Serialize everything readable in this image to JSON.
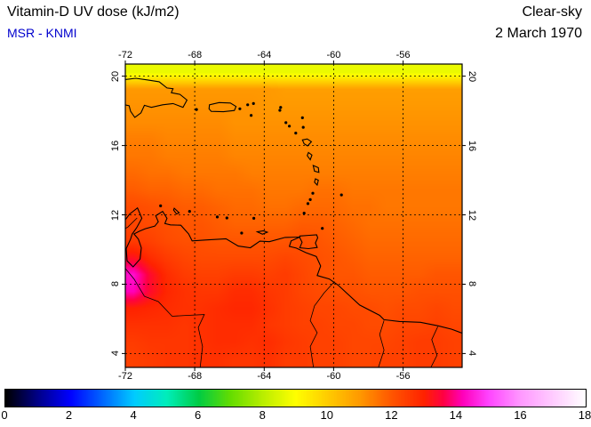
{
  "header": {
    "title": "Vitamin-D UV dose (kJ/m2)",
    "source": "MSR - KNMI",
    "source_color": "#0000cd",
    "condition": "Clear-sky",
    "date": "2 March 1970"
  },
  "chart_data": {
    "type": "heatmap",
    "title": "Vitamin-D UV dose (kJ/m2)",
    "subtitle": "MSR - KNMI",
    "scenario": "Clear-sky",
    "date": "2 March 1970",
    "units": "kJ/m2",
    "region": "Caribbean / northern South America",
    "lon_range": [
      -72,
      -52.6
    ],
    "lat_range": [
      3.2,
      20.7
    ],
    "xlabel_ticks": [
      -72,
      -68,
      -64,
      -60,
      -56
    ],
    "ylabel_ticks": [
      20,
      16,
      12,
      8,
      4
    ],
    "grid_on": true,
    "grid_style": "dashed",
    "values_order": "rows north to south, 20 columns west to east",
    "values": [
      [
        8.7,
        8.7,
        8.7,
        8.7,
        8.7,
        8.7,
        8.7,
        8.7,
        8.7,
        8.7,
        8.7,
        8.7,
        8.7,
        8.7,
        8.7,
        8.7,
        8.7,
        8.7,
        8.7,
        8.7
      ],
      [
        11.0,
        11.0,
        11.0,
        11.0,
        11.0,
        11.0,
        11.0,
        11.0,
        11.0,
        10.9,
        10.9,
        10.9,
        10.9,
        10.9,
        10.9,
        10.9,
        10.9,
        10.9,
        10.9,
        10.9
      ],
      [
        11.1,
        11.1,
        11.1,
        11.1,
        11.1,
        11.1,
        11.1,
        11.1,
        11.0,
        11.0,
        11.0,
        11.0,
        11.0,
        11.0,
        11.0,
        11.0,
        11.0,
        11.0,
        11.0,
        11.0
      ],
      [
        11.2,
        11.2,
        11.2,
        11.2,
        11.2,
        11.2,
        11.1,
        11.1,
        11.1,
        11.1,
        11.1,
        11.1,
        11.1,
        11.1,
        11.1,
        11.1,
        11.1,
        11.1,
        11.1,
        11.1
      ],
      [
        11.4,
        11.4,
        11.3,
        11.3,
        11.3,
        11.3,
        11.2,
        11.2,
        11.2,
        11.2,
        11.2,
        11.2,
        11.2,
        11.2,
        11.2,
        11.2,
        11.2,
        11.2,
        11.2,
        11.2
      ],
      [
        11.5,
        11.5,
        11.4,
        11.4,
        11.4,
        11.4,
        11.3,
        11.3,
        11.3,
        11.3,
        11.3,
        11.3,
        11.3,
        11.3,
        11.3,
        11.3,
        11.3,
        11.3,
        11.3,
        11.3
      ],
      [
        11.7,
        11.6,
        11.6,
        11.5,
        11.5,
        11.5,
        11.5,
        11.4,
        11.4,
        11.4,
        11.4,
        11.4,
        11.4,
        11.4,
        11.4,
        11.4,
        11.4,
        11.4,
        11.4,
        11.4
      ],
      [
        11.9,
        11.8,
        11.8,
        11.7,
        11.7,
        11.6,
        11.6,
        11.6,
        11.5,
        11.5,
        11.5,
        11.6,
        11.6,
        11.5,
        11.5,
        11.5,
        11.5,
        11.5,
        11.5,
        11.5
      ],
      [
        12.2,
        12.1,
        12.0,
        11.9,
        11.9,
        11.8,
        11.7,
        11.7,
        11.6,
        11.6,
        11.7,
        11.7,
        11.7,
        11.6,
        11.6,
        11.5,
        11.5,
        11.5,
        11.5,
        11.5
      ],
      [
        12.3,
        12.2,
        12.1,
        12.0,
        12.0,
        11.9,
        11.8,
        11.8,
        11.8,
        11.8,
        11.9,
        11.9,
        11.8,
        11.7,
        11.6,
        11.6,
        11.6,
        11.6,
        11.6,
        11.6
      ],
      [
        12.5,
        12.4,
        12.2,
        12.1,
        12.1,
        12.0,
        12.0,
        12.0,
        12.0,
        12.0,
        12.1,
        12.0,
        11.9,
        11.8,
        11.7,
        11.7,
        11.7,
        11.7,
        11.7,
        11.7
      ],
      [
        13.3,
        12.8,
        12.5,
        12.3,
        12.2,
        12.2,
        12.2,
        12.2,
        12.2,
        12.3,
        12.2,
        12.1,
        12.0,
        11.9,
        11.8,
        11.8,
        11.8,
        11.8,
        11.8,
        11.8
      ],
      [
        14.4,
        13.4,
        12.8,
        12.5,
        12.4,
        12.4,
        12.5,
        12.5,
        12.4,
        12.5,
        12.3,
        12.1,
        12.0,
        12.0,
        11.9,
        11.9,
        11.9,
        11.9,
        12.0,
        12.0
      ],
      [
        14.2,
        13.4,
        12.9,
        12.7,
        12.6,
        12.6,
        12.8,
        12.8,
        12.6,
        12.5,
        12.3,
        12.2,
        12.1,
        12.1,
        12.0,
        12.0,
        12.0,
        12.1,
        12.1,
        12.1
      ],
      [
        13.0,
        12.9,
        12.8,
        12.7,
        12.7,
        12.8,
        12.9,
        12.9,
        12.7,
        12.5,
        12.4,
        12.3,
        12.3,
        12.2,
        12.2,
        12.1,
        12.2,
        12.2,
        12.3,
        12.2
      ],
      [
        12.7,
        12.7,
        12.7,
        12.6,
        12.7,
        12.8,
        12.8,
        12.8,
        12.6,
        12.5,
        12.4,
        12.4,
        12.3,
        12.3,
        12.2,
        12.2,
        12.3,
        12.3,
        12.4,
        12.3
      ],
      [
        12.5,
        12.6,
        12.6,
        12.6,
        12.7,
        12.8,
        12.8,
        12.7,
        12.8,
        12.6,
        12.5,
        12.4,
        12.4,
        12.3,
        12.3,
        12.3,
        12.4,
        12.5,
        12.5,
        12.4
      ],
      [
        12.4,
        12.5,
        12.6,
        12.6,
        12.7,
        12.7,
        12.6,
        12.6,
        12.7,
        12.5,
        12.5,
        12.4,
        12.4,
        12.3,
        12.3,
        12.4,
        12.4,
        12.5,
        12.5,
        12.4
      ]
    ],
    "colormap_stops": [
      [
        0,
        "#000000"
      ],
      [
        1,
        "#000088"
      ],
      [
        2,
        "#0000ff"
      ],
      [
        3,
        "#0066ff"
      ],
      [
        4,
        "#00ccff"
      ],
      [
        5,
        "#00eebb"
      ],
      [
        6,
        "#00cc44"
      ],
      [
        7,
        "#66dd00"
      ],
      [
        8,
        "#bbee00"
      ],
      [
        9,
        "#ffff00"
      ],
      [
        10,
        "#ffcc00"
      ],
      [
        11,
        "#ff9900"
      ],
      [
        12,
        "#ff5500"
      ],
      [
        13,
        "#ff2200"
      ],
      [
        13.6,
        "#ff0044"
      ],
      [
        14.2,
        "#ff00bb"
      ],
      [
        15,
        "#ff44ff"
      ],
      [
        16,
        "#ff99ff"
      ],
      [
        17,
        "#ffccff"
      ],
      [
        18,
        "#ffffff"
      ]
    ],
    "colorbar": {
      "min": 0,
      "max": 18,
      "ticks": [
        0,
        2,
        4,
        6,
        8,
        10,
        12,
        14,
        16,
        18
      ],
      "position": "bottom"
    }
  },
  "geo": {
    "polylines": [
      {
        "name": "hispaniola-coast",
        "kind": "coast",
        "closed": false,
        "pts": [
          [
            -72.2,
            19.78
          ],
          [
            -71.4,
            19.88
          ],
          [
            -70.7,
            19.78
          ],
          [
            -70.05,
            19.68
          ],
          [
            -69.6,
            19.32
          ],
          [
            -69.25,
            19.28
          ],
          [
            -69.35,
            19.05
          ],
          [
            -68.85,
            18.95
          ],
          [
            -68.45,
            18.62
          ],
          [
            -68.68,
            18.2
          ],
          [
            -69.25,
            18.42
          ],
          [
            -69.85,
            18.35
          ],
          [
            -70.5,
            18.2
          ],
          [
            -70.9,
            18.32
          ],
          [
            -71.1,
            17.88
          ],
          [
            -71.45,
            17.62
          ],
          [
            -71.7,
            17.98
          ],
          [
            -71.78,
            18.3
          ],
          [
            -72.2,
            18.38
          ]
        ]
      },
      {
        "name": "puerto-rico-coast",
        "kind": "coast",
        "closed": true,
        "pts": [
          [
            -67.15,
            18.35
          ],
          [
            -66.6,
            18.48
          ],
          [
            -65.95,
            18.45
          ],
          [
            -65.62,
            18.25
          ],
          [
            -65.72,
            18.02
          ],
          [
            -66.35,
            17.95
          ],
          [
            -67.05,
            17.97
          ],
          [
            -67.18,
            18.12
          ]
        ]
      },
      {
        "name": "guadeloupe-coast",
        "kind": "coast",
        "closed": true,
        "pts": [
          [
            -61.8,
            16.32
          ],
          [
            -61.52,
            16.38
          ],
          [
            -61.28,
            16.22
          ],
          [
            -61.5,
            15.98
          ],
          [
            -61.7,
            16.1
          ]
        ]
      },
      {
        "name": "dominica-coast",
        "kind": "coast",
        "closed": true,
        "pts": [
          [
            -61.45,
            15.6
          ],
          [
            -61.25,
            15.45
          ],
          [
            -61.35,
            15.18
          ],
          [
            -61.52,
            15.42
          ]
        ]
      },
      {
        "name": "martinique-coast",
        "kind": "coast",
        "closed": true,
        "pts": [
          [
            -61.18,
            14.85
          ],
          [
            -60.88,
            14.72
          ],
          [
            -60.85,
            14.45
          ],
          [
            -61.1,
            14.52
          ]
        ]
      },
      {
        "name": "st-lucia-coast",
        "kind": "coast",
        "closed": true,
        "pts": [
          [
            -61.05,
            14.08
          ],
          [
            -60.88,
            14.0
          ],
          [
            -60.95,
            13.72
          ],
          [
            -61.1,
            13.88
          ]
        ]
      },
      {
        "name": "trinidad-coast",
        "kind": "coast",
        "closed": true,
        "pts": [
          [
            -61.95,
            10.78
          ],
          [
            -61.4,
            10.82
          ],
          [
            -60.98,
            10.85
          ],
          [
            -60.92,
            10.68
          ],
          [
            -61.05,
            10.38
          ],
          [
            -60.95,
            10.12
          ],
          [
            -61.45,
            10.05
          ],
          [
            -61.95,
            10.1
          ],
          [
            -61.82,
            10.42
          ],
          [
            -61.95,
            10.68
          ]
        ]
      },
      {
        "name": "margarita-coast",
        "kind": "coast",
        "closed": true,
        "pts": [
          [
            -64.4,
            11.02
          ],
          [
            -64.05,
            11.08
          ],
          [
            -63.82,
            11.0
          ],
          [
            -64.1,
            10.88
          ]
        ]
      },
      {
        "name": "curacao-coast",
        "kind": "coast",
        "closed": true,
        "pts": [
          [
            -69.18,
            12.38
          ],
          [
            -68.9,
            12.12
          ],
          [
            -69.05,
            12.05
          ],
          [
            -69.22,
            12.28
          ]
        ]
      },
      {
        "name": "south-america-coast",
        "kind": "coast",
        "closed": false,
        "pts": [
          [
            -72.2,
            11.45
          ],
          [
            -71.75,
            12.05
          ],
          [
            -71.3,
            12.4
          ],
          [
            -71.05,
            11.8
          ],
          [
            -71.35,
            11.25
          ],
          [
            -71.6,
            10.9
          ],
          [
            -71.7,
            10.6
          ],
          [
            -71.95,
            10.05
          ],
          [
            -71.9,
            9.35
          ],
          [
            -71.55,
            9.0
          ],
          [
            -71.15,
            9.45
          ],
          [
            -71.08,
            10.1
          ],
          [
            -71.25,
            10.6
          ],
          [
            -71.5,
            10.9
          ],
          [
            -71.2,
            11.05
          ],
          [
            -70.85,
            11.2
          ],
          [
            -70.3,
            11.35
          ],
          [
            -70.1,
            11.6
          ],
          [
            -70.25,
            11.95
          ],
          [
            -69.85,
            12.2
          ],
          [
            -69.6,
            11.8
          ],
          [
            -69.72,
            11.5
          ],
          [
            -69.4,
            11.42
          ],
          [
            -68.8,
            11.4
          ],
          [
            -68.35,
            10.9
          ],
          [
            -68.15,
            10.5
          ],
          [
            -67.4,
            10.55
          ],
          [
            -66.2,
            10.62
          ],
          [
            -65.5,
            10.2
          ],
          [
            -64.8,
            10.1
          ],
          [
            -64.25,
            10.48
          ],
          [
            -63.7,
            10.45
          ],
          [
            -62.8,
            10.7
          ],
          [
            -61.95,
            10.72
          ],
          [
            -62.45,
            10.5
          ],
          [
            -62.55,
            10.18
          ],
          [
            -62.15,
            10.08
          ],
          [
            -61.6,
            9.82
          ],
          [
            -61.0,
            9.6
          ],
          [
            -60.75,
            9.05
          ],
          [
            -60.95,
            8.5
          ],
          [
            -60.25,
            8.3
          ],
          [
            -59.75,
            7.95
          ],
          [
            -58.5,
            6.8
          ],
          [
            -57.35,
            6.2
          ],
          [
            -57.1,
            5.95
          ],
          [
            -56.2,
            5.85
          ],
          [
            -55.0,
            5.8
          ],
          [
            -54.0,
            5.6
          ],
          [
            -53.2,
            5.4
          ],
          [
            -52.4,
            5.1
          ]
        ]
      },
      {
        "name": "border-colombia-venezuela",
        "kind": "border",
        "closed": false,
        "pts": [
          [
            -72.2,
            9.15
          ],
          [
            -71.5,
            8.3
          ],
          [
            -70.9,
            7.3
          ],
          [
            -70.1,
            7.0
          ],
          [
            -69.3,
            6.15
          ],
          [
            -68.4,
            6.2
          ],
          [
            -67.45,
            6.25
          ],
          [
            -67.8,
            5.5
          ],
          [
            -67.55,
            4.4
          ],
          [
            -67.7,
            3.1
          ]
        ]
      },
      {
        "name": "border-guajira",
        "kind": "border",
        "closed": false,
        "pts": [
          [
            -71.32,
            11.82
          ],
          [
            -71.85,
            11.3
          ],
          [
            -72.2,
            11.1
          ]
        ]
      },
      {
        "name": "border-venezuela-guyana",
        "kind": "border",
        "closed": false,
        "pts": [
          [
            -59.95,
            8.15
          ],
          [
            -60.55,
            7.5
          ],
          [
            -61.1,
            6.75
          ],
          [
            -61.35,
            5.9
          ],
          [
            -60.95,
            5.2
          ],
          [
            -61.35,
            4.4
          ],
          [
            -61.15,
            3.1
          ]
        ]
      },
      {
        "name": "border-guyana-suriname",
        "kind": "border",
        "closed": false,
        "pts": [
          [
            -57.1,
            5.9
          ],
          [
            -57.35,
            5.1
          ],
          [
            -57.1,
            4.2
          ],
          [
            -57.45,
            3.1
          ]
        ]
      },
      {
        "name": "border-suriname-french-guiana",
        "kind": "border",
        "closed": false,
        "pts": [
          [
            -54.0,
            5.55
          ],
          [
            -54.35,
            4.8
          ],
          [
            -54.05,
            3.9
          ],
          [
            -54.45,
            3.1
          ]
        ]
      }
    ],
    "islets": [
      [
        -67.9,
        18.08
      ],
      [
        -65.4,
        18.12
      ],
      [
        -64.95,
        18.35
      ],
      [
        -64.62,
        18.42
      ],
      [
        -64.75,
        17.74
      ],
      [
        -63.05,
        18.2
      ],
      [
        -63.1,
        18.03
      ],
      [
        -62.75,
        17.32
      ],
      [
        -62.55,
        17.12
      ],
      [
        -62.18,
        16.72
      ],
      [
        -61.8,
        17.6
      ],
      [
        -61.75,
        17.05
      ],
      [
        -61.2,
        13.25
      ],
      [
        -61.35,
        12.88
      ],
      [
        -61.48,
        12.65
      ],
      [
        -61.7,
        12.1
      ],
      [
        -59.55,
        13.15
      ],
      [
        -60.65,
        11.22
      ],
      [
        -69.97,
        12.52
      ],
      [
        -68.3,
        12.2
      ],
      [
        -66.7,
        11.88
      ],
      [
        -66.15,
        11.82
      ],
      [
        -65.3,
        10.95
      ],
      [
        -64.6,
        11.8
      ]
    ]
  }
}
